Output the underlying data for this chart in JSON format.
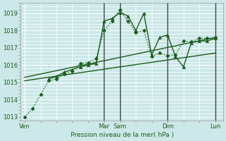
{
  "bg_color": "#cce8e8",
  "grid_color": "#ffffff",
  "line_color": "#1a5c1a",
  "ylabel": "Pression niveau de la mer( hPa )",
  "ylim": [
    1012.8,
    1019.6
  ],
  "yticks": [
    1013,
    1014,
    1015,
    1016,
    1017,
    1018,
    1019
  ],
  "x_day_labels": [
    "Ven",
    "Mar",
    "Sam",
    "Dim",
    "Lun"
  ],
  "x_day_positions": [
    0,
    60,
    72,
    108,
    144
  ],
  "xlim": [
    -3,
    150
  ],
  "series": [
    {
      "x": [
        0,
        6,
        12,
        18,
        24,
        30,
        36,
        42,
        48,
        54,
        60,
        66,
        72,
        78,
        84,
        90,
        96,
        102,
        108,
        114,
        120,
        126,
        132,
        138,
        144
      ],
      "y": [
        1013.0,
        1013.5,
        1014.3,
        1015.1,
        1015.2,
        1015.5,
        1015.65,
        1016.1,
        1016.15,
        1016.4,
        1018.0,
        1018.55,
        1019.2,
        1018.55,
        1017.9,
        1018.0,
        1016.5,
        1016.7,
        1016.55,
        1016.6,
        1017.4,
        1017.35,
        1017.55,
        1017.55,
        1017.6
      ],
      "marker": "D",
      "markersize": 2.5,
      "linestyle": ":",
      "linewidth": 1.0
    },
    {
      "x": [
        0,
        144
      ],
      "y": [
        1015.1,
        1016.7
      ],
      "marker": null,
      "markersize": 0,
      "linestyle": "-",
      "linewidth": 1.0
    },
    {
      "x": [
        0,
        144
      ],
      "y": [
        1015.3,
        1017.6
      ],
      "marker": null,
      "markersize": 0,
      "linestyle": "-",
      "linewidth": 1.0
    },
    {
      "x": [
        18,
        24,
        30,
        36,
        42,
        48,
        54,
        60,
        66,
        72,
        78,
        84,
        90,
        96,
        102,
        108,
        114,
        120,
        126,
        132,
        138,
        144
      ],
      "y": [
        1015.2,
        1015.35,
        1015.6,
        1015.75,
        1015.9,
        1016.0,
        1016.1,
        1018.55,
        1018.7,
        1019.05,
        1018.85,
        1018.0,
        1019.0,
        1016.6,
        1017.6,
        1017.75,
        1016.5,
        1015.9,
        1017.3,
        1017.4,
        1017.4,
        1017.55
      ],
      "marker": "^",
      "markersize": 3,
      "linestyle": "-",
      "linewidth": 1.0
    }
  ],
  "vline_positions": [
    60,
    72,
    108,
    144
  ],
  "vline_color": "#444444",
  "vline_linewidth": 1.0
}
